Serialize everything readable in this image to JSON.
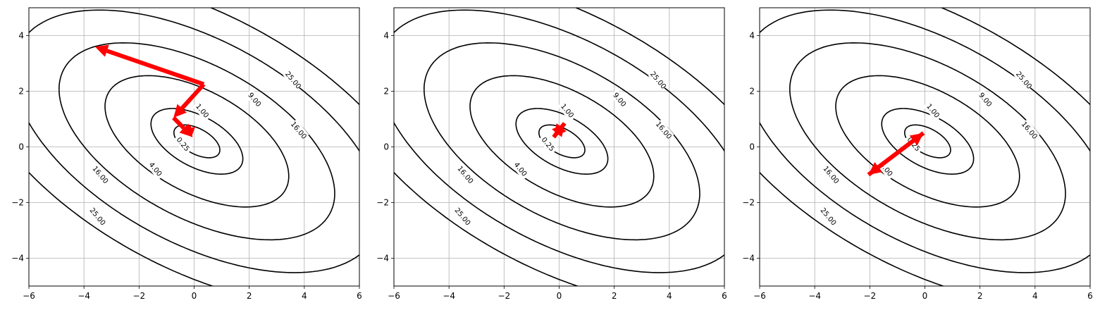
{
  "colors": {
    "arrow": "#ff0000",
    "contour": "#000000",
    "grid": "#b0b0b0"
  },
  "chart_data": [
    {
      "type": "contour",
      "title": "",
      "xlabel": "",
      "ylabel": "",
      "xlim": [
        -6,
        6
      ],
      "ylim": [
        -5,
        5
      ],
      "grid": true,
      "xticks": [
        -6,
        -4,
        -2,
        0,
        2,
        4,
        6
      ],
      "yticks": [
        -4,
        -2,
        0,
        2,
        4
      ],
      "xtick_labels": [
        "−6",
        "−4",
        "−2",
        "0",
        "2",
        "4",
        "6"
      ],
      "ytick_labels": [
        "−4",
        "−2",
        "0",
        "2",
        "4"
      ],
      "contour_levels": [
        0.25,
        1,
        4,
        9,
        16,
        25
      ],
      "contour_labels": [
        "0.25",
        "1.00",
        "4.00",
        "9.00",
        "16.00",
        "25.00"
      ],
      "arrows": [
        {
          "from": [
            0.35,
            2.25
          ],
          "to": [
            -3.6,
            3.6
          ]
        },
        {
          "from": [
            0.35,
            2.25
          ],
          "to": [
            -0.75,
            1.05
          ]
        },
        {
          "from": [
            -0.75,
            1.05
          ],
          "to": [
            -0.05,
            0.35
          ]
        },
        {
          "from": [
            -0.2,
            0.75
          ],
          "to": [
            -0.1,
            0.35
          ]
        }
      ]
    },
    {
      "type": "contour",
      "title": "",
      "xlabel": "",
      "ylabel": "",
      "xlim": [
        -6,
        6
      ],
      "ylim": [
        -5,
        5
      ],
      "grid": true,
      "xticks": [
        -6,
        -4,
        -2,
        0,
        2,
        4,
        6
      ],
      "yticks": [
        -4,
        -2,
        0,
        2,
        4
      ],
      "xtick_labels": [
        "−6",
        "−4",
        "−2",
        "0",
        "2",
        "4",
        "6"
      ],
      "ytick_labels": [
        "−4",
        "−2",
        "0",
        "2",
        "4"
      ],
      "contour_levels": [
        0.25,
        1,
        4,
        9,
        16,
        25
      ],
      "contour_labels": [
        "0.25",
        "1.00",
        "4.00",
        "9.00",
        "16.00",
        "25.00"
      ],
      "arrows": [
        {
          "from": [
            -0.2,
            0.35
          ],
          "to": [
            0.2,
            0.85
          ]
        },
        {
          "from": [
            0.2,
            0.85
          ],
          "to": [
            -0.2,
            0.35
          ]
        }
      ]
    },
    {
      "type": "contour",
      "title": "",
      "xlabel": "",
      "ylabel": "",
      "xlim": [
        -6,
        6
      ],
      "ylim": [
        -5,
        5
      ],
      "grid": true,
      "xticks": [
        -6,
        -4,
        -2,
        0,
        2,
        4,
        6
      ],
      "yticks": [
        -4,
        -2,
        0,
        2,
        4
      ],
      "xtick_labels": [
        "−6",
        "−4",
        "−2",
        "0",
        "2",
        "4",
        "6"
      ],
      "ytick_labels": [
        "−4",
        "−2",
        "0",
        "2",
        "4"
      ],
      "contour_levels": [
        0.25,
        1,
        4,
        9,
        16,
        25
      ],
      "contour_labels": [
        "0.25",
        "1.00",
        "4.00",
        "9.00",
        "16.00",
        "25.00"
      ],
      "arrows": [
        {
          "from": [
            -0.05,
            0.5
          ],
          "to": [
            -2.05,
            -1.0
          ]
        },
        {
          "from": [
            -2.05,
            -1.0
          ],
          "to": [
            -0.05,
            0.5
          ]
        }
      ]
    }
  ]
}
